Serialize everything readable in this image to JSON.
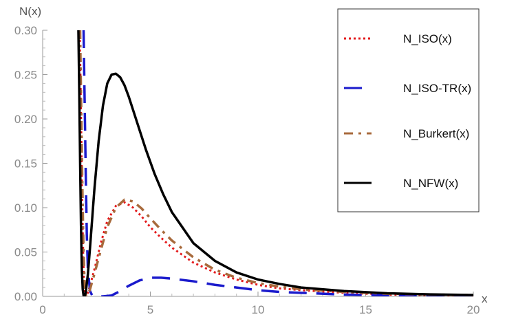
{
  "chart_data": {
    "type": "line",
    "xlabel": "x",
    "ylabel": "N(x)",
    "xlim": [
      0,
      20
    ],
    "ylim": [
      0,
      0.3
    ],
    "x_ticks": [
      "0",
      "5",
      "10",
      "15",
      "20"
    ],
    "y_ticks": [
      "0.00",
      "0.05",
      "0.10",
      "0.15",
      "0.20",
      "0.25",
      "0.30"
    ],
    "grid": false,
    "legend_position": "top-right",
    "series": [
      {
        "name": "N_ISO(x)",
        "color": "#e31a1c",
        "dash": "dotted",
        "x": [
          1.72,
          1.76,
          1.8,
          1.84,
          1.88,
          1.92,
          1.95,
          2.0,
          2.1,
          2.2,
          2.4,
          2.7,
          3.0,
          3.4,
          3.8,
          4.2,
          4.6,
          5.0,
          5.5,
          6.0,
          7.0,
          8.0,
          9.0,
          10.0,
          11.0,
          12.0,
          14.0,
          16.0,
          18.0,
          20.0
        ],
        "y": [
          0.3,
          0.24,
          0.17,
          0.1,
          0.05,
          0.015,
          0.004,
          0.0,
          0.004,
          0.012,
          0.03,
          0.06,
          0.085,
          0.102,
          0.106,
          0.1,
          0.09,
          0.078,
          0.066,
          0.055,
          0.038,
          0.027,
          0.019,
          0.013,
          0.009,
          0.007,
          0.004,
          0.002,
          0.0015,
          0.001
        ]
      },
      {
        "name": "N_ISO-TR(x)",
        "color": "#1a1acc",
        "dash": "long-dashed",
        "x": [
          1.9,
          1.95,
          2.0,
          2.05,
          2.1,
          2.2,
          2.3,
          2.5,
          2.8,
          3.2,
          3.6,
          4.0,
          4.5,
          5.0,
          5.5,
          6.0,
          7.0,
          8.0,
          9.0,
          10.0,
          11.0,
          12.0,
          14.0,
          16.0,
          18.0,
          20.0
        ],
        "y": [
          0.3,
          0.22,
          0.14,
          0.07,
          0.03,
          0.006,
          0.001,
          0.0,
          0.0,
          0.001,
          0.006,
          0.012,
          0.018,
          0.021,
          0.021,
          0.02,
          0.017,
          0.013,
          0.01,
          0.007,
          0.005,
          0.004,
          0.002,
          0.0012,
          0.0007,
          0.0005
        ]
      },
      {
        "name": "N_Burkert(x)",
        "color": "#a86a3c",
        "dash": "dash-dot",
        "x": [
          1.74,
          1.78,
          1.82,
          1.86,
          1.9,
          1.94,
          1.98,
          2.02,
          2.1,
          2.2,
          2.4,
          2.7,
          3.0,
          3.4,
          3.8,
          4.2,
          4.6,
          5.0,
          5.5,
          6.0,
          7.0,
          8.0,
          9.0,
          10.0,
          11.0,
          12.0,
          14.0,
          16.0,
          18.0,
          20.0
        ],
        "y": [
          0.3,
          0.23,
          0.16,
          0.1,
          0.05,
          0.02,
          0.005,
          0.0,
          0.002,
          0.008,
          0.025,
          0.052,
          0.078,
          0.1,
          0.109,
          0.107,
          0.099,
          0.088,
          0.075,
          0.063,
          0.044,
          0.03,
          0.021,
          0.015,
          0.011,
          0.008,
          0.005,
          0.003,
          0.002,
          0.0015
        ]
      },
      {
        "name": "N_NFW(x)",
        "color": "#000000",
        "dash": "solid",
        "x": [
          1.66,
          1.7,
          1.74,
          1.78,
          1.82,
          1.86,
          1.9,
          1.95,
          2.0,
          2.1,
          2.2,
          2.4,
          2.6,
          2.8,
          3.0,
          3.2,
          3.4,
          3.6,
          3.8,
          4.0,
          4.4,
          4.8,
          5.2,
          5.6,
          6.0,
          7.0,
          8.0,
          9.0,
          10.0,
          11.0,
          12.0,
          14.0,
          16.0,
          18.0,
          20.0
        ],
        "y": [
          0.3,
          0.23,
          0.15,
          0.08,
          0.03,
          0.008,
          0.001,
          0.0,
          0.004,
          0.025,
          0.055,
          0.12,
          0.175,
          0.215,
          0.24,
          0.25,
          0.251,
          0.247,
          0.238,
          0.225,
          0.195,
          0.165,
          0.138,
          0.115,
          0.095,
          0.06,
          0.04,
          0.027,
          0.019,
          0.014,
          0.01,
          0.006,
          0.0035,
          0.0022,
          0.0015
        ]
      }
    ]
  }
}
